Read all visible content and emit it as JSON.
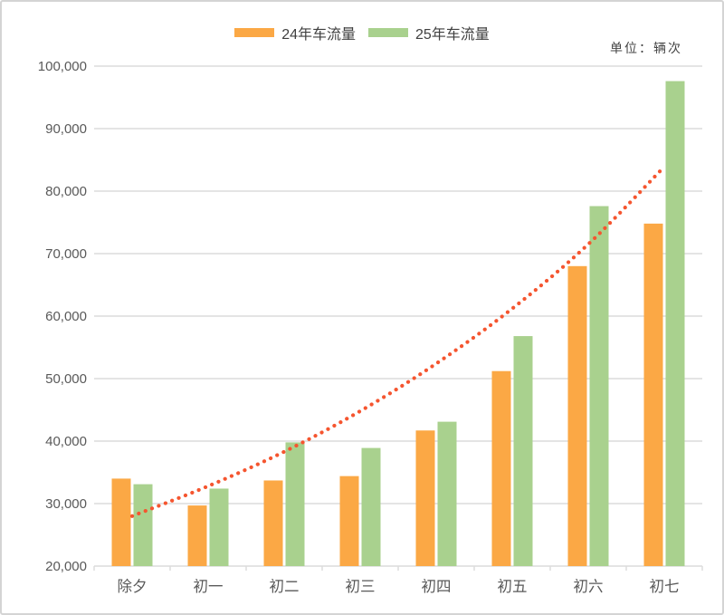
{
  "chart": {
    "unit_label": "单位：辆次",
    "legend": [
      {
        "label": "24年车流量",
        "color": "#FBA845"
      },
      {
        "label": "25年车流量",
        "color": "#A9D18E"
      }
    ]
  },
  "chart_data": {
    "type": "bar",
    "title": "",
    "unit": "单位：辆次",
    "categories": [
      "除夕",
      "初一",
      "初二",
      "初三",
      "初四",
      "初五",
      "初六",
      "初七"
    ],
    "series": [
      {
        "name": "24年车流量",
        "color": "#FBA845",
        "values": [
          34000,
          29700,
          33700,
          34400,
          41700,
          51200,
          68000,
          74800
        ]
      },
      {
        "name": "25年车流量",
        "color": "#A9D18E",
        "values": [
          33100,
          32400,
          39800,
          38900,
          43100,
          56800,
          77600,
          97600
        ]
      }
    ],
    "trendline": {
      "series_ref": "25年车流量",
      "shape": "exponential",
      "style": "dotted",
      "color": "#F5552F",
      "values": [
        28000,
        32800,
        38300,
        44800,
        52400,
        61200,
        71500,
        83900
      ]
    },
    "ylim": [
      20000,
      100000
    ],
    "ytick_step": 10000,
    "ytick_labels": [
      "20,000",
      "30,000",
      "40,000",
      "50,000",
      "60,000",
      "70,000",
      "80,000",
      "90,000",
      "100,000"
    ],
    "grid": true,
    "gridline_color": "#dcdcdc",
    "axis_text_color": "#595959",
    "legend_position": "top-center"
  }
}
